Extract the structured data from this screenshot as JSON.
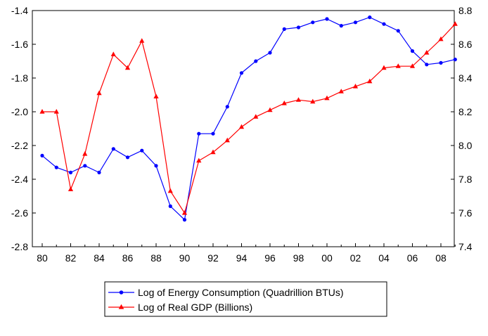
{
  "chart_data": {
    "type": "line",
    "x_tick_labels": [
      "80",
      "82",
      "84",
      "86",
      "88",
      "90",
      "92",
      "94",
      "96",
      "98",
      "00",
      "02",
      "04",
      "06",
      "08"
    ],
    "x": [
      1980,
      1981,
      1982,
      1983,
      1984,
      1985,
      1986,
      1987,
      1988,
      1989,
      1990,
      1991,
      1992,
      1993,
      1994,
      1995,
      1996,
      1997,
      1998,
      1999,
      2000,
      2001,
      2002,
      2003,
      2004,
      2005,
      2006,
      2007,
      2008,
      2009
    ],
    "y_left": {
      "range": [
        -2.8,
        -1.4
      ],
      "ticks": [
        "-1.4",
        "-1.6",
        "-1.8",
        "-2.0",
        "-2.2",
        "-2.4",
        "-2.6",
        "-2.8"
      ]
    },
    "y_right": {
      "range": [
        7.4,
        8.8
      ],
      "ticks": [
        "8.8",
        "8.6",
        "8.4",
        "8.2",
        "8.0",
        "7.8",
        "7.6",
        "7.4"
      ]
    },
    "grid": false,
    "legend_position": "bottom",
    "series": [
      {
        "name": "Log of Energy Consumption (Quadrillion BTUs)",
        "axis": "left",
        "color": "#0000ff",
        "marker": "circle",
        "values": [
          -2.26,
          -2.33,
          -2.36,
          -2.32,
          -2.36,
          -2.22,
          -2.27,
          -2.23,
          -2.32,
          -2.56,
          -2.64,
          -2.13,
          -2.13,
          -1.97,
          -1.77,
          -1.7,
          -1.65,
          -1.51,
          -1.5,
          -1.47,
          -1.45,
          -1.49,
          -1.47,
          -1.44,
          -1.48,
          -1.52,
          -1.64,
          -1.72,
          -1.71,
          -1.69
        ]
      },
      {
        "name": "Log of Real GDP (Billions)",
        "axis": "right",
        "color": "#ff0000",
        "marker": "triangle",
        "values": [
          8.2,
          8.2,
          7.74,
          7.95,
          8.31,
          8.54,
          8.46,
          8.62,
          8.29,
          7.73,
          7.6,
          7.91,
          7.96,
          8.03,
          8.11,
          8.17,
          8.21,
          8.25,
          8.27,
          8.26,
          8.28,
          8.32,
          8.35,
          8.38,
          8.46,
          8.47,
          8.47,
          8.55,
          8.63,
          8.72
        ]
      }
    ]
  }
}
